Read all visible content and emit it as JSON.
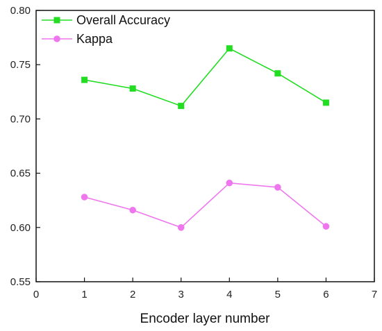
{
  "chart_data": {
    "type": "line",
    "xlabel": "Encoder layer number",
    "ylabel": "",
    "xlim": [
      0,
      7
    ],
    "ylim": [
      0.55,
      0.8
    ],
    "xticks": [
      "0",
      "1",
      "2",
      "3",
      "4",
      "5",
      "6",
      "7"
    ],
    "yticks": [
      "0.55",
      "0.60",
      "0.65",
      "0.70",
      "0.75",
      "0.80"
    ],
    "grid": false,
    "legend_position": "top-left",
    "x": [
      1,
      2,
      3,
      4,
      5,
      6
    ],
    "series": [
      {
        "name": "Overall Accuracy",
        "values": [
          0.736,
          0.728,
          0.712,
          0.765,
          0.742,
          0.715
        ],
        "color": "#22dd22",
        "marker": "square"
      },
      {
        "name": "Kappa",
        "values": [
          0.628,
          0.616,
          0.6,
          0.641,
          0.637,
          0.601
        ],
        "color": "#ee77ee",
        "marker": "circle"
      }
    ]
  }
}
